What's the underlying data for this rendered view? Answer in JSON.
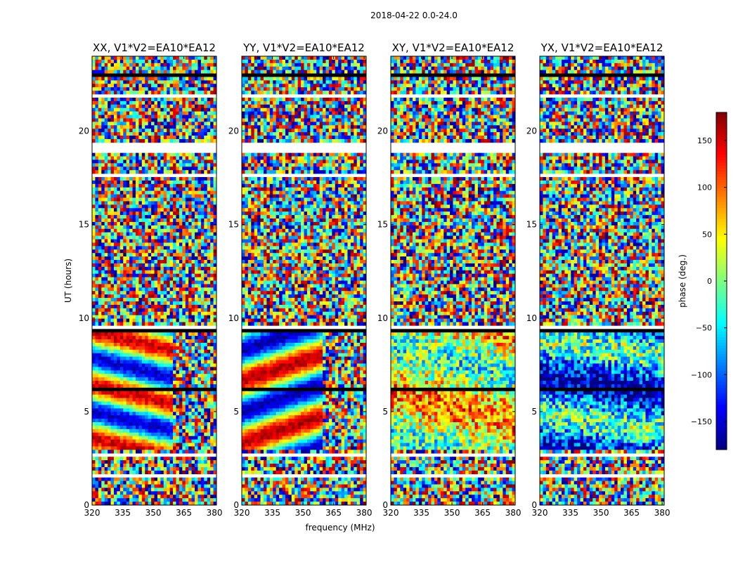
{
  "figure": {
    "suptitle": "2018-04-22 0.0-24.0"
  },
  "chart_data": [
    {
      "type": "heatmap",
      "title": "XX, V1*V2=EA10*EA12",
      "xlabel": "",
      "ylabel": "UT (hours)",
      "xlim": [
        320,
        381
      ],
      "ylim": [
        0,
        24
      ],
      "xticks": [
        "320",
        "335",
        "350",
        "365",
        "380"
      ],
      "yticks": [
        "0",
        "5",
        "10",
        "15",
        "20"
      ],
      "xtick_values": [
        320,
        335,
        350,
        365,
        380
      ],
      "ytick_values": [
        0,
        5,
        10,
        15,
        20
      ],
      "colormap": "jet",
      "value_range_deg": [
        -180,
        180
      ]
    },
    {
      "type": "heatmap",
      "title": "YY, V1*V2=EA10*EA12",
      "xlabel": "frequency (MHz)",
      "ylabel": "",
      "xlim": [
        320,
        381
      ],
      "ylim": [
        0,
        24
      ],
      "xticks": [
        "320",
        "335",
        "350",
        "365",
        "380"
      ],
      "yticks": [
        "0",
        "5",
        "10",
        "15",
        "20"
      ],
      "xtick_values": [
        320,
        335,
        350,
        365,
        380
      ],
      "ytick_values": [
        0,
        5,
        10,
        15,
        20
      ],
      "colormap": "jet",
      "value_range_deg": [
        -180,
        180
      ]
    },
    {
      "type": "heatmap",
      "title": "XY, V1*V2=EA10*EA12",
      "xlabel": "",
      "ylabel": "",
      "xlim": [
        320,
        381
      ],
      "ylim": [
        0,
        24
      ],
      "xticks": [
        "320",
        "335",
        "350",
        "365",
        "380"
      ],
      "yticks": [
        "0",
        "5",
        "10",
        "15",
        "20"
      ],
      "xtick_values": [
        320,
        335,
        350,
        365,
        380
      ],
      "ytick_values": [
        0,
        5,
        10,
        15,
        20
      ],
      "colormap": "jet",
      "value_range_deg": [
        -180,
        180
      ]
    },
    {
      "type": "heatmap",
      "title": "YX, V1*V2=EA10*EA12",
      "xlabel": "",
      "ylabel": "",
      "xlim": [
        320,
        381
      ],
      "ylim": [
        0,
        24
      ],
      "xticks": [
        "320",
        "335",
        "350",
        "365",
        "380"
      ],
      "yticks": [
        "0",
        "5",
        "10",
        "15",
        "20"
      ],
      "xtick_values": [
        320,
        335,
        350,
        365,
        380
      ],
      "ytick_values": [
        0,
        5,
        10,
        15,
        20
      ],
      "colormap": "jet",
      "value_range_deg": [
        -180,
        180
      ]
    }
  ],
  "colorbar": {
    "label": "phase (deg.)",
    "ticks": [
      "150",
      "100",
      "50",
      "0",
      "−50",
      "−100",
      "−150"
    ],
    "tick_values": [
      150,
      100,
      50,
      0,
      -50,
      -100,
      -150
    ],
    "range": [
      -180,
      180
    ],
    "colormap": "jet"
  }
}
